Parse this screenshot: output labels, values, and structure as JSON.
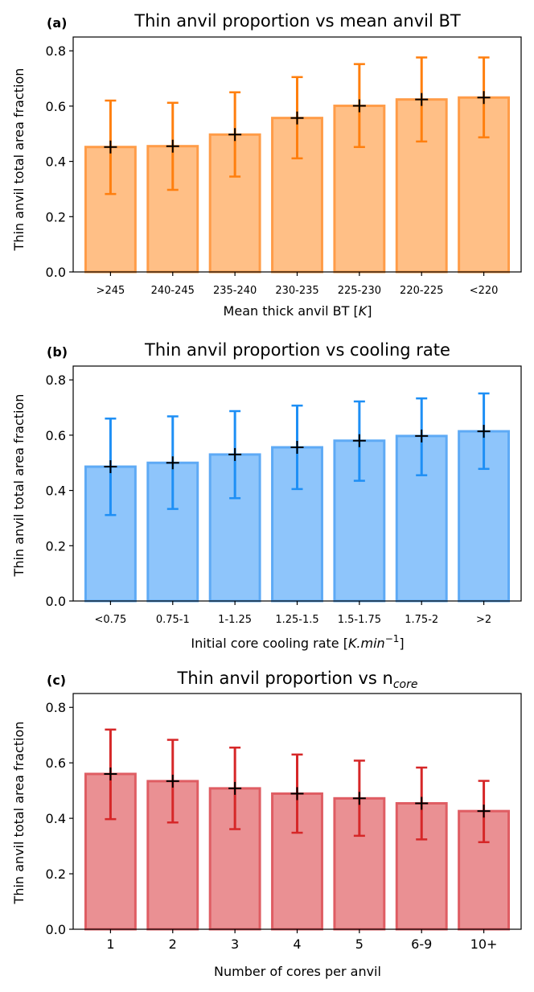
{
  "colors": {
    "orange_fill": "#ffbf86",
    "orange_edge": "#ff9c48",
    "orange_err": "#ff7f0e",
    "blue_fill": "#8ec5fb",
    "blue_edge": "#5eaaf5",
    "blue_err": "#1e8ff5",
    "red_fill": "#ea9093",
    "red_edge": "#df5d63",
    "red_err": "#d62728",
    "mean_marker": "#000000"
  },
  "chart_data": [
    {
      "type": "bar",
      "panel_label": "(a)",
      "title": "Thin anvil proportion vs mean anvil BT",
      "xlabel": "Mean thick anvil BT [K]",
      "ylabel": "Thin anvil total area fraction",
      "categories": [
        ">245",
        "240-245",
        "235-240",
        "230-235",
        "225-230",
        "220-225",
        "<220"
      ],
      "values": [
        0.452,
        0.455,
        0.497,
        0.557,
        0.601,
        0.624,
        0.631
      ],
      "error_low": [
        0.282,
        0.297,
        0.345,
        0.411,
        0.452,
        0.472,
        0.487
      ],
      "error_high": [
        0.62,
        0.612,
        0.65,
        0.705,
        0.752,
        0.776,
        0.776
      ],
      "ylim": [
        0,
        0.85
      ],
      "yticks": [
        "0.0",
        "0.2",
        "0.4",
        "0.6",
        "0.8"
      ],
      "color": "orange"
    },
    {
      "type": "bar",
      "panel_label": "(b)",
      "title": "Thin anvil proportion vs cooling rate",
      "xlabel": "Initial core cooling rate [K.min⁻¹]",
      "ylabel": "Thin anvil total area fraction",
      "categories": [
        "<0.75",
        "0.75-1",
        "1-1.25",
        "1.25-1.5",
        "1.5-1.75",
        "1.75-2",
        ">2"
      ],
      "values": [
        0.486,
        0.5,
        0.53,
        0.556,
        0.58,
        0.597,
        0.614
      ],
      "error_low": [
        0.311,
        0.333,
        0.372,
        0.405,
        0.435,
        0.455,
        0.478
      ],
      "error_high": [
        0.66,
        0.668,
        0.687,
        0.707,
        0.722,
        0.733,
        0.751
      ],
      "ylim": [
        0,
        0.85
      ],
      "yticks": [
        "0.0",
        "0.2",
        "0.4",
        "0.6",
        "0.8"
      ],
      "color": "blue"
    },
    {
      "type": "bar",
      "panel_label": "(c)",
      "title": "Thin anvil proportion vs n",
      "title_sub": "core",
      "xlabel": "Number of cores per anvil",
      "ylabel": "Thin anvil total area fraction",
      "categories": [
        "1",
        "2",
        "3",
        "4",
        "5",
        "6-9",
        "10+"
      ],
      "values": [
        0.56,
        0.534,
        0.508,
        0.489,
        0.472,
        0.454,
        0.426
      ],
      "error_low": [
        0.397,
        0.385,
        0.361,
        0.348,
        0.337,
        0.324,
        0.314
      ],
      "error_high": [
        0.72,
        0.683,
        0.655,
        0.63,
        0.608,
        0.583,
        0.535
      ],
      "ylim": [
        0,
        0.85
      ],
      "yticks": [
        "0.0",
        "0.2",
        "0.4",
        "0.6",
        "0.8"
      ],
      "color": "red"
    }
  ]
}
